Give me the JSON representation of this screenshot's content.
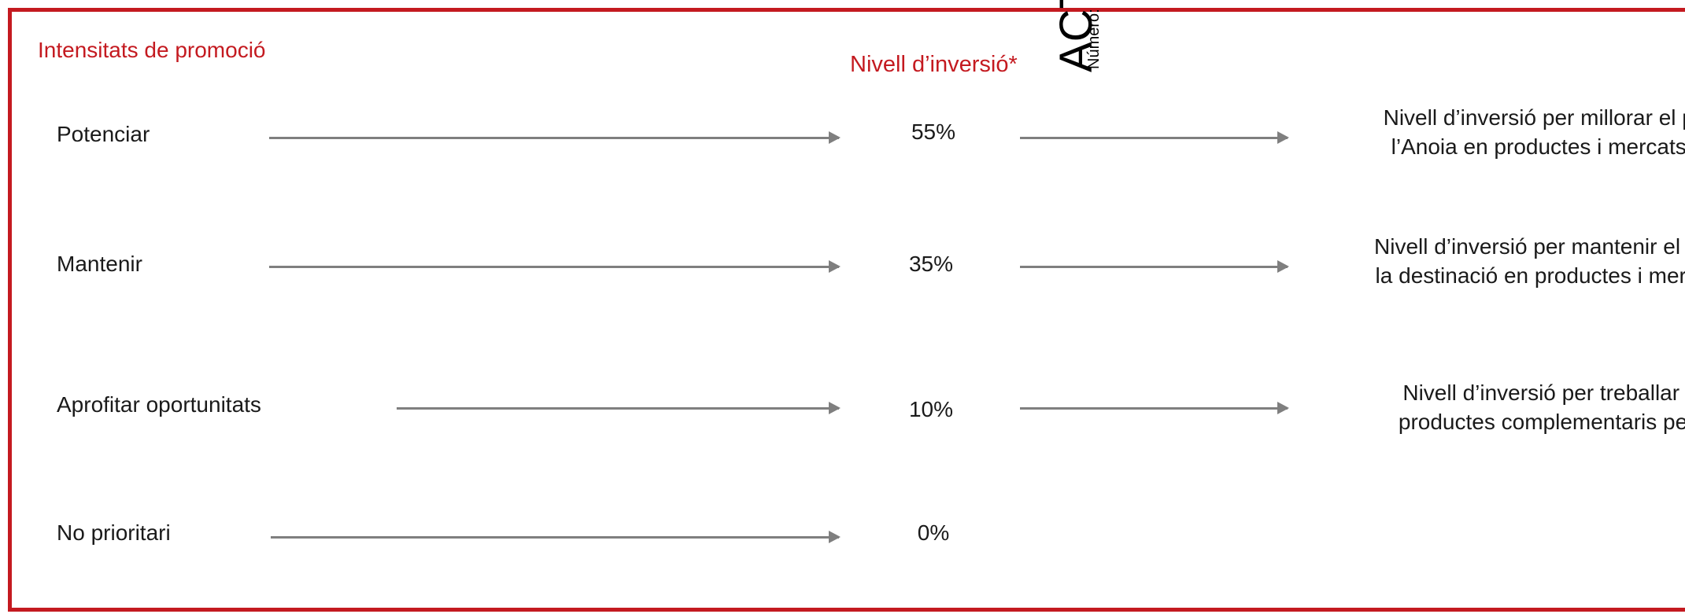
{
  "header": {
    "section_title": "Intensitats de promoció",
    "column_title": "Nivell d’inversió*",
    "rotated_title": "ACTA",
    "rotated_subtitle": "Número:"
  },
  "rows": [
    {
      "label": "Potenciar",
      "percent": "55%",
      "description_line1": "Nivell d’inversió per millorar el pos",
      "description_line2": "l’Anoia en productes i mercats d’"
    },
    {
      "label": "Mantenir",
      "percent": "35%",
      "description_line1": "Nivell d’inversió per mantenir el po",
      "description_line2": "la destinació en productes i merca"
    },
    {
      "label": "Aprofitar oportunitats",
      "percent": "10%",
      "description_line1": "Nivell d’inversió per treballar els",
      "description_line2": "productes complementaris per la"
    },
    {
      "label": "No prioritari",
      "percent": "0%"
    }
  ],
  "colors": {
    "accent": "#c41a20",
    "arrow": "#7f7f7f",
    "text": "#1a1a1a"
  }
}
